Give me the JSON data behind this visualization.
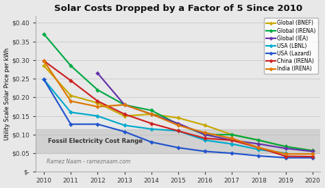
{
  "title": "Solar Costs Dropped by a Factor of 5 Since 2010",
  "ylabel": "Utility Scale Solar Price per kWh",
  "watermark": "Ramez Naam - rameznaam.com",
  "fossil_band": [
    0.05,
    0.115
  ],
  "fossil_label": "Fossil Electricity Cost Range",
  "ylim": [
    0,
    0.42
  ],
  "xlim": [
    2010,
    2020
  ],
  "bg_color": "#f0f0f0",
  "plot_bg_color": "#f0f0f0",
  "series": [
    {
      "label": "Global (BNEF)",
      "color": "#c8a800",
      "marker": "D",
      "data": {
        "2010": 0.285,
        "2011": 0.205,
        "2012": 0.185,
        "2013": 0.15,
        "2014": 0.155,
        "2015": 0.145,
        "2016": 0.125,
        "2017": 0.1,
        "2018": 0.085,
        "2019": 0.068,
        "2020": 0.057
      }
    },
    {
      "label": "Global (IRENA)",
      "color": "#00aa44",
      "marker": "D",
      "data": {
        "2010": 0.37,
        "2011": 0.285,
        "2012": 0.22,
        "2013": 0.18,
        "2014": 0.165,
        "2015": 0.128,
        "2016": 0.1,
        "2017": 0.1,
        "2018": 0.085,
        "2019": 0.068,
        "2020": 0.057
      }
    },
    {
      "label": "Global (IEA)",
      "color": "#6633aa",
      "marker": "D",
      "data": {
        "2012": 0.265,
        "2013": 0.18,
        "2014": 0.155,
        "2015": 0.13,
        "2016": 0.1,
        "2017": 0.085,
        "2018": 0.075,
        "2019": 0.063,
        "2020": 0.055
      }
    },
    {
      "label": "USA (LBNL)",
      "color": "#00aacc",
      "marker": "D",
      "data": {
        "2010": 0.248,
        "2011": 0.16,
        "2012": 0.15,
        "2013": 0.125,
        "2014": 0.115,
        "2015": 0.11,
        "2016": 0.085,
        "2017": 0.075,
        "2018": 0.06,
        "2019": 0.05
      }
    },
    {
      "label": "USA (Lazard)",
      "color": "#2255cc",
      "marker": "D",
      "data": {
        "2010": 0.248,
        "2011": 0.128,
        "2012": 0.128,
        "2013": 0.108,
        "2014": 0.08,
        "2015": 0.065,
        "2016": 0.055,
        "2017": 0.05,
        "2018": 0.043,
        "2019": 0.038,
        "2020": 0.038
      }
    },
    {
      "label": "China (IRENA)",
      "color": "#cc2222",
      "marker": "D",
      "data": {
        "2010": 0.298,
        "2011": 0.245,
        "2012": 0.19,
        "2013": 0.155,
        "2014": 0.13,
        "2015": 0.11,
        "2016": 0.09,
        "2017": 0.085,
        "2018": 0.065,
        "2019": 0.042,
        "2020": 0.041
      }
    },
    {
      "label": "India (IRENA)",
      "color": "#dd7700",
      "marker": "D",
      "data": {
        "2010": 0.298,
        "2011": 0.19,
        "2012": 0.175,
        "2013": 0.18,
        "2014": 0.155,
        "2015": 0.125,
        "2016": 0.105,
        "2017": 0.09,
        "2018": 0.065,
        "2019": 0.048,
        "2020": 0.048
      }
    }
  ]
}
